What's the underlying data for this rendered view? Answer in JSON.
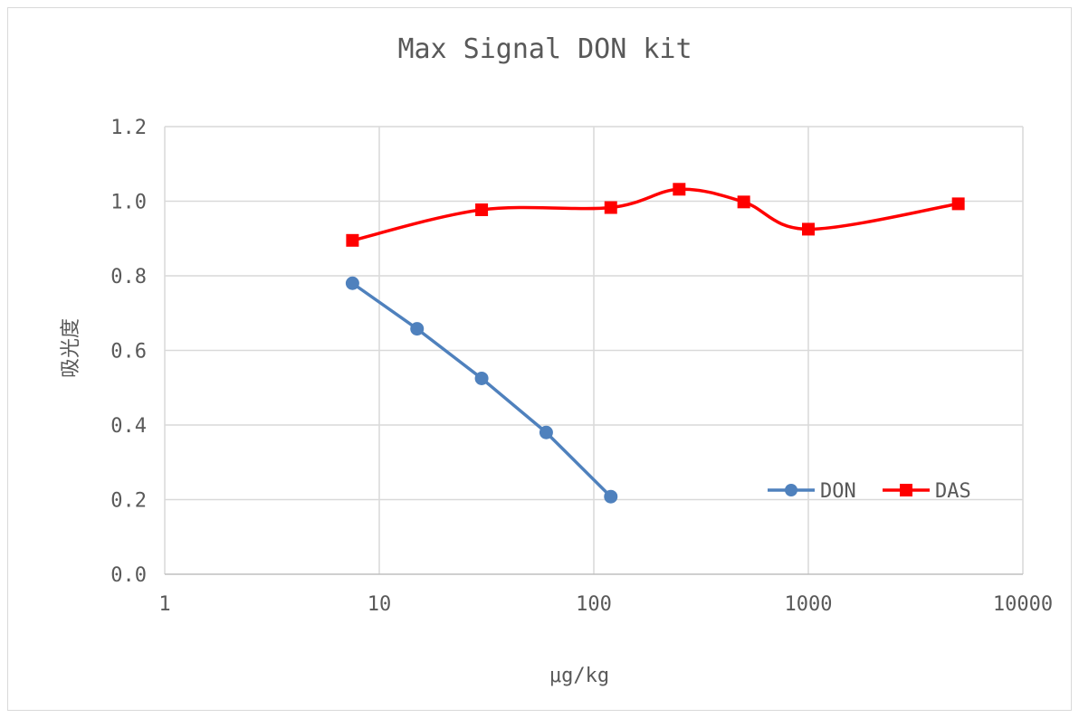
{
  "chart_data": {
    "type": "line",
    "title": "Max Signal DON kit",
    "xlabel": "μg/kg",
    "ylabel": "吸光度",
    "x_scale": "log",
    "xlim": [
      1,
      10000
    ],
    "ylim": [
      0.0,
      1.2
    ],
    "x_ticks": [
      "1",
      "10",
      "100",
      "1000",
      "10000"
    ],
    "x_tick_values": [
      1,
      10,
      100,
      1000,
      10000
    ],
    "y_ticks": [
      "0.0",
      "0.2",
      "0.4",
      "0.6",
      "0.8",
      "1.0",
      "1.2"
    ],
    "y_tick_values": [
      0.0,
      0.2,
      0.4,
      0.6,
      0.8,
      1.0,
      1.2
    ],
    "grid": true,
    "legend_position": "bottom-right inside",
    "series": [
      {
        "name": "DON",
        "color": "#4f81bd",
        "marker": "circle",
        "smooth": false,
        "x": [
          7.5,
          15,
          30,
          60,
          120
        ],
        "y": [
          0.78,
          0.658,
          0.525,
          0.38,
          0.208
        ]
      },
      {
        "name": "DAS",
        "color": "#ff0000",
        "marker": "square",
        "smooth": true,
        "x": [
          7.5,
          30,
          120,
          250,
          500,
          1000,
          5000
        ],
        "y": [
          0.895,
          0.977,
          0.983,
          1.032,
          0.998,
          0.925,
          0.993
        ]
      }
    ]
  }
}
